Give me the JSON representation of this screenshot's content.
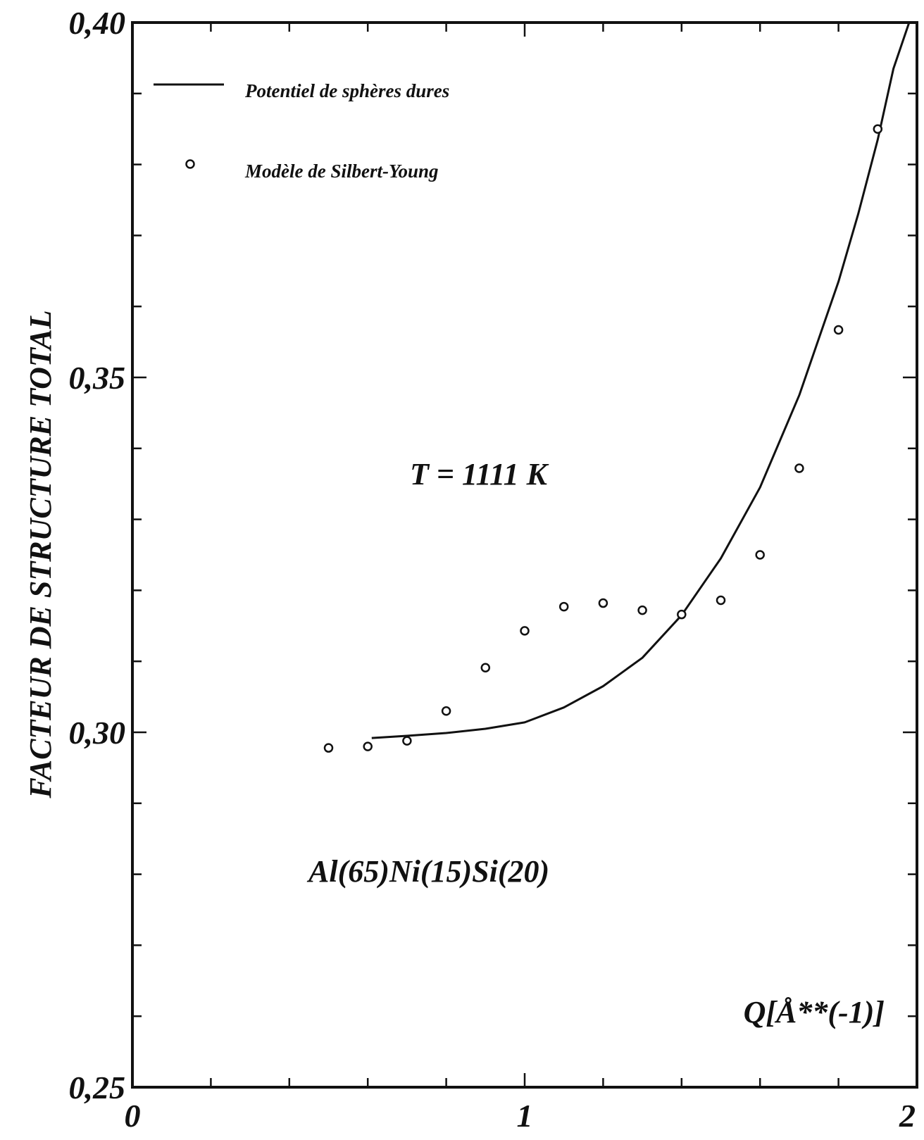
{
  "chart_data": {
    "type": "line",
    "title": "",
    "xlabel": "Q[Å**(-1)]",
    "ylabel": "FACTEUR DE STRUCTURE TOTAL",
    "xlim": [
      0,
      2
    ],
    "ylim": [
      0.25,
      0.4
    ],
    "grid": false,
    "legend_placement": "top-left",
    "x_ticks": [
      {
        "value": 0,
        "label": "0"
      },
      {
        "value": 1,
        "label": "1"
      },
      {
        "value": 2,
        "label": "2"
      }
    ],
    "y_ticks": [
      {
        "value": 0.25,
        "label": "0,25"
      },
      {
        "value": 0.3,
        "label": "0,30"
      },
      {
        "value": 0.35,
        "label": "0,35"
      },
      {
        "value": 0.4,
        "label": "0,40"
      }
    ],
    "x_minor_step": 0.2,
    "y_minor_step": 0.01,
    "annotations": [
      {
        "text": "T = 1111 K"
      },
      {
        "text": "Al(65)Ni(15)Si(20)"
      }
    ],
    "series": [
      {
        "name": "Potentiel de sphères dures",
        "style": "line",
        "color": "#111111",
        "x": [
          0.61,
          0.7,
          0.8,
          0.9,
          1.0,
          1.1,
          1.2,
          1.3,
          1.4,
          1.5,
          1.6,
          1.7,
          1.8,
          1.85,
          1.9,
          1.94,
          1.98
        ],
        "y": [
          0.2992,
          0.2995,
          0.2999,
          0.3005,
          0.3014,
          0.3035,
          0.3065,
          0.3105,
          0.3165,
          0.3245,
          0.3345,
          0.3475,
          0.3635,
          0.373,
          0.3835,
          0.3935,
          0.4
        ]
      },
      {
        "name": "Modèle de Silbert-Young",
        "style": "markers",
        "color": "#111111",
        "x": [
          0.5,
          0.6,
          0.7,
          0.8,
          0.9,
          1.0,
          1.1,
          1.2,
          1.3,
          1.4,
          1.5,
          1.6,
          1.7,
          1.8,
          1.9
        ],
        "y": [
          0.2978,
          0.298,
          0.2988,
          0.303,
          0.3091,
          0.3143,
          0.3177,
          0.3182,
          0.3172,
          0.3166,
          0.3186,
          0.325,
          0.3372,
          0.3567,
          0.385
        ]
      }
    ]
  }
}
